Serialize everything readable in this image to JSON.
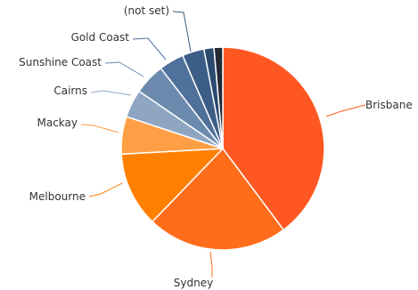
{
  "chart_data": {
    "type": "pie",
    "title": "",
    "slices": [
      {
        "label": "Brisbane",
        "value": 40.0,
        "color": "#FF5722"
      },
      {
        "label": "Sydney",
        "value": 22.5,
        "color": "#FF6D1A"
      },
      {
        "label": "Melbourne",
        "value": 12.0,
        "color": "#FF8000"
      },
      {
        "label": "Mackay",
        "value": 6.0,
        "color": "#FF9F45"
      },
      {
        "label": "Cairns",
        "value": 4.5,
        "color": "#8FA6C2"
      },
      {
        "label": "Sunshine Coast",
        "value": 5.0,
        "color": "#6C89AE"
      },
      {
        "label": "Gold Coast",
        "value": 4.0,
        "color": "#4F719B"
      },
      {
        "label": "(not set)",
        "value": 3.5,
        "color": "#3B5D86"
      },
      {
        "label": "",
        "value": 1.6,
        "color": "#2C4A70"
      },
      {
        "label": "",
        "value": 1.4,
        "color": "#222A35"
      }
    ],
    "connector_color": "slice-color",
    "legend": "none"
  }
}
